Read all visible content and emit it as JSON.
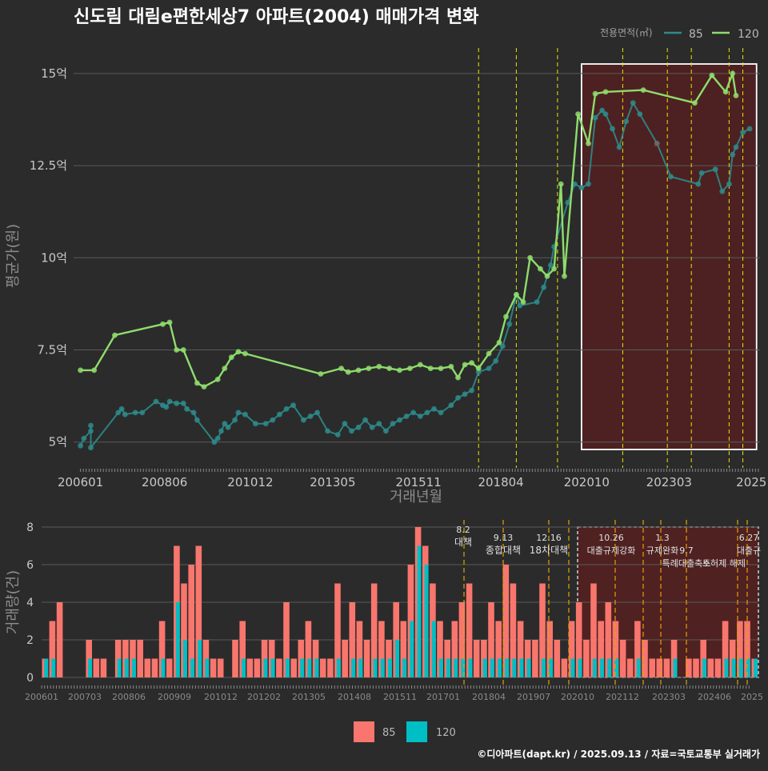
{
  "title": "신도림 대림e편한세상7 아파트(2004) 매매가격 변화",
  "footer": "©디아파트(dapt.kr) / 2025.09.13 / 자료=국토교통부 실거래가",
  "colors": {
    "s85": "#2e8b8b",
    "s120": "#8fdc6c",
    "bar85": "#f8766d",
    "bar120": "#00bfc4",
    "vline": "#e6e600",
    "vline2": "#e6a000",
    "highlight": "#5a1f1f"
  },
  "chart_data": [
    {
      "type": "line",
      "title": "신도림 대림e편한세상7 아파트(2004) 매매가격 변화",
      "xlabel": "거래년월",
      "ylabel": "평균가(원)",
      "ylim": [
        4.3,
        15.8
      ],
      "yticks": [
        5,
        7.5,
        10,
        12.5,
        15
      ],
      "ytick_labels": [
        "5억",
        "7.5억",
        "10억",
        "12.5억",
        "15억"
      ],
      "xticks": [
        "200601",
        "200806",
        "201012",
        "201305",
        "201511",
        "201804",
        "202010",
        "202303",
        "2025"
      ],
      "legend_title": "전용면적(㎡)",
      "legend": "top-right",
      "series": [
        {
          "name": "85",
          "points": [
            [
              2006.0,
              4.9
            ],
            [
              2006.1,
              5.1
            ],
            [
              2006.3,
              5.3
            ],
            [
              2006.3,
              5.45
            ],
            [
              2006.3,
              4.85
            ],
            [
              2007.1,
              5.8
            ],
            [
              2007.2,
              5.9
            ],
            [
              2007.3,
              5.75
            ],
            [
              2007.6,
              5.8
            ],
            [
              2007.8,
              5.8
            ],
            [
              2008.2,
              6.1
            ],
            [
              2008.4,
              6.0
            ],
            [
              2008.5,
              5.95
            ],
            [
              2008.6,
              6.1
            ],
            [
              2008.8,
              6.05
            ],
            [
              2009.0,
              6.05
            ],
            [
              2009.1,
              5.9
            ],
            [
              2009.3,
              5.8
            ],
            [
              2009.4,
              5.6
            ],
            [
              2009.9,
              5.0
            ],
            [
              2010.0,
              5.1
            ],
            [
              2010.1,
              5.3
            ],
            [
              2010.2,
              5.5
            ],
            [
              2010.3,
              5.4
            ],
            [
              2010.5,
              5.6
            ],
            [
              2010.6,
              5.8
            ],
            [
              2010.8,
              5.75
            ],
            [
              2011.1,
              5.5
            ],
            [
              2011.4,
              5.5
            ],
            [
              2011.6,
              5.6
            ],
            [
              2011.8,
              5.75
            ],
            [
              2012.0,
              5.9
            ],
            [
              2012.2,
              6.0
            ],
            [
              2012.5,
              5.6
            ],
            [
              2012.7,
              5.7
            ],
            [
              2012.9,
              5.8
            ],
            [
              2013.2,
              5.3
            ],
            [
              2013.5,
              5.2
            ],
            [
              2013.7,
              5.5
            ],
            [
              2013.9,
              5.3
            ],
            [
              2014.1,
              5.4
            ],
            [
              2014.3,
              5.6
            ],
            [
              2014.5,
              5.4
            ],
            [
              2014.7,
              5.5
            ],
            [
              2014.9,
              5.3
            ],
            [
              2015.1,
              5.5
            ],
            [
              2015.3,
              5.6
            ],
            [
              2015.5,
              5.7
            ],
            [
              2015.7,
              5.8
            ],
            [
              2015.9,
              5.7
            ],
            [
              2016.1,
              5.8
            ],
            [
              2016.3,
              5.9
            ],
            [
              2016.5,
              5.8
            ],
            [
              2016.8,
              6.0
            ],
            [
              2017.0,
              6.2
            ],
            [
              2017.2,
              6.3
            ],
            [
              2017.4,
              6.4
            ],
            [
              2017.6,
              6.9
            ],
            [
              2017.9,
              7.0
            ],
            [
              2018.1,
              7.2
            ],
            [
              2018.3,
              7.6
            ],
            [
              2018.5,
              8.2
            ],
            [
              2018.7,
              9.0
            ],
            [
              2018.8,
              8.7
            ],
            [
              2019.3,
              8.8
            ],
            [
              2019.5,
              9.2
            ],
            [
              2019.7,
              9.8
            ],
            [
              2019.8,
              10.3
            ],
            [
              2020.2,
              11.5
            ],
            [
              2020.4,
              12.0
            ],
            [
              2020.6,
              11.9
            ],
            [
              2020.8,
              12.0
            ],
            [
              2021.0,
              13.8
            ],
            [
              2021.2,
              14.0
            ],
            [
              2021.3,
              13.9
            ],
            [
              2021.5,
              13.5
            ],
            [
              2021.7,
              13.0
            ],
            [
              2021.9,
              13.7
            ],
            [
              2022.1,
              14.2
            ],
            [
              2022.3,
              13.9
            ],
            [
              2022.8,
              13.1
            ],
            [
              2023.2,
              12.2
            ],
            [
              2024.0,
              12.0
            ],
            [
              2024.1,
              12.3
            ],
            [
              2024.5,
              12.4
            ],
            [
              2024.7,
              11.8
            ],
            [
              2024.9,
              12.0
            ],
            [
              2025.0,
              12.8
            ],
            [
              2025.1,
              13.0
            ],
            [
              2025.3,
              13.4
            ],
            [
              2025.5,
              13.5
            ]
          ]
        },
        {
          "name": "120",
          "points": [
            [
              2006.0,
              6.95
            ],
            [
              2006.4,
              6.95
            ],
            [
              2007.0,
              7.9
            ],
            [
              2008.4,
              8.2
            ],
            [
              2008.6,
              8.25
            ],
            [
              2008.8,
              7.5
            ],
            [
              2009.0,
              7.5
            ],
            [
              2009.4,
              6.6
            ],
            [
              2009.6,
              6.5
            ],
            [
              2010.0,
              6.7
            ],
            [
              2010.2,
              7.0
            ],
            [
              2010.4,
              7.3
            ],
            [
              2010.6,
              7.45
            ],
            [
              2010.8,
              7.4
            ],
            [
              2013.0,
              6.85
            ],
            [
              2013.6,
              7.0
            ],
            [
              2013.8,
              6.9
            ],
            [
              2014.1,
              6.95
            ],
            [
              2014.4,
              7.0
            ],
            [
              2014.7,
              7.05
            ],
            [
              2015.0,
              7.0
            ],
            [
              2015.3,
              6.95
            ],
            [
              2015.6,
              7.0
            ],
            [
              2015.9,
              7.1
            ],
            [
              2016.2,
              7.0
            ],
            [
              2016.5,
              7.0
            ],
            [
              2016.8,
              7.05
            ],
            [
              2017.0,
              6.75
            ],
            [
              2017.2,
              7.1
            ],
            [
              2017.4,
              7.15
            ],
            [
              2017.6,
              7.0
            ],
            [
              2017.9,
              7.4
            ],
            [
              2018.2,
              7.7
            ],
            [
              2018.4,
              8.4
            ],
            [
              2018.7,
              9.0
            ],
            [
              2018.9,
              8.8
            ],
            [
              2019.1,
              10.0
            ],
            [
              2019.4,
              9.7
            ],
            [
              2019.6,
              9.5
            ],
            [
              2019.8,
              9.7
            ],
            [
              2020.0,
              12.0
            ],
            [
              2020.1,
              9.5
            ],
            [
              2020.5,
              13.9
            ],
            [
              2020.8,
              13.1
            ],
            [
              2021.0,
              14.45
            ],
            [
              2021.3,
              14.5
            ],
            [
              2022.4,
              14.55
            ],
            [
              2023.9,
              14.2
            ],
            [
              2024.4,
              14.95
            ],
            [
              2024.8,
              14.5
            ],
            [
              2025.0,
              15.0
            ],
            [
              2025.1,
              14.4
            ]
          ]
        }
      ],
      "annotations_vlines": [
        2017.6,
        2018.7,
        2019.9,
        2021.8,
        2023.1,
        2023.8,
        2024.9,
        2025.3
      ],
      "highlight_range": [
        2020.6,
        2025.7
      ]
    },
    {
      "type": "bar",
      "ylabel": "거래량(건)",
      "ylim": [
        0,
        8
      ],
      "yticks": [
        0,
        2,
        4,
        6,
        8
      ],
      "xticks": [
        "200601",
        "200703",
        "200806",
        "200909",
        "201012",
        "201202",
        "201305",
        "201408",
        "201511",
        "201701",
        "201804",
        "201907",
        "202010",
        "202112",
        "202303",
        "202406",
        "2025"
      ],
      "series": [
        {
          "name": "85",
          "values": [
            1,
            3,
            4,
            0,
            0,
            0,
            2,
            1,
            1,
            0,
            2,
            2,
            2,
            2,
            1,
            1,
            3,
            1,
            7,
            5,
            6,
            7,
            2,
            1,
            1,
            0,
            2,
            3,
            1,
            1,
            2,
            2,
            1,
            4,
            1,
            2,
            3,
            2,
            1,
            1,
            5,
            2,
            4,
            3,
            2,
            5,
            3,
            2,
            4,
            3,
            6,
            8,
            7,
            5,
            3,
            2,
            3,
            4,
            5,
            2,
            2,
            4,
            3,
            6,
            5,
            3,
            2,
            2,
            5,
            3,
            2,
            1,
            3,
            4,
            2,
            5,
            3,
            4,
            3,
            2,
            1,
            3,
            2,
            1,
            1,
            1,
            2,
            0,
            1,
            1,
            2,
            1,
            1,
            3,
            2,
            3,
            3,
            1
          ]
        },
        {
          "name": "120",
          "values": [
            1,
            1,
            0,
            0,
            0,
            0,
            1,
            0,
            0,
            0,
            1,
            1,
            1,
            0,
            0,
            0,
            1,
            0,
            4,
            2,
            1,
            2,
            1,
            0,
            0,
            0,
            0,
            1,
            0,
            0,
            1,
            1,
            0,
            1,
            0,
            1,
            1,
            1,
            0,
            0,
            1,
            0,
            1,
            1,
            0,
            1,
            1,
            1,
            2,
            1,
            3,
            7,
            6,
            3,
            1,
            1,
            1,
            1,
            1,
            0,
            1,
            1,
            1,
            1,
            1,
            1,
            1,
            0,
            1,
            1,
            0,
            0,
            1,
            1,
            0,
            1,
            1,
            1,
            1,
            0,
            0,
            1,
            0,
            0,
            0,
            0,
            1,
            0,
            0,
            0,
            1,
            0,
            0,
            1,
            1,
            1,
            1,
            1
          ]
        }
      ],
      "event_labels": [
        {
          "date": "8.2",
          "text": "대책"
        },
        {
          "date": "9.13",
          "text": "종합대책"
        },
        {
          "date": "12.16",
          "text": "18차대책"
        },
        {
          "date": "10.26",
          "text": "대출규제강화"
        },
        {
          "date": "1.3",
          "text": "규제완화"
        },
        {
          "date": "9.7",
          "text": "특례대출축소"
        },
        {
          "date": "",
          "text": "토허제 해제"
        },
        {
          "date": "6.27",
          "text": "대출규"
        }
      ],
      "legend": "bottom"
    }
  ],
  "legend_labels": {
    "title": "전용면적(㎡)",
    "s85": "85",
    "s120": "120"
  },
  "bar_legend": {
    "s85": "85",
    "s120": "120"
  }
}
